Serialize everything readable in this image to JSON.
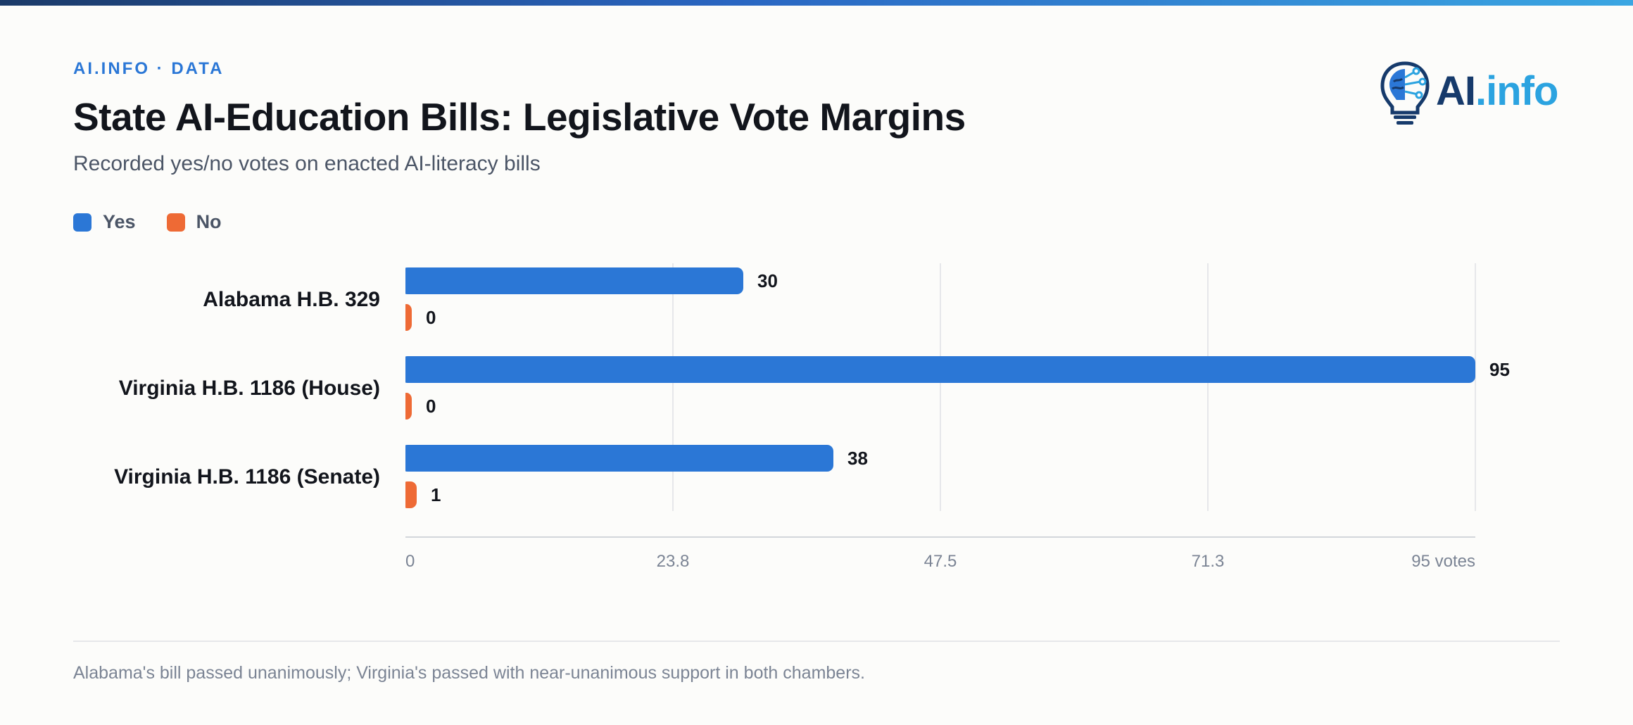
{
  "header": {
    "eyebrow": "AI.INFO · DATA",
    "title": "State AI-Education Bills: Legislative Vote Margins",
    "subtitle": "Recorded yes/no votes on enacted AI-literacy bills"
  },
  "logo": {
    "ai": "AI",
    "info": ".info",
    "icon": "lightbulb-brain-icon"
  },
  "colors": {
    "yes": "#2b77d6",
    "no": "#ee6a35",
    "grid": "#e6e7ea",
    "axis": "#d3d6db"
  },
  "chart_data": {
    "type": "bar",
    "orientation": "horizontal",
    "categories": [
      "Alabama H.B. 329",
      "Virginia H.B. 1186 (House)",
      "Virginia H.B. 1186 (Senate)"
    ],
    "series": [
      {
        "name": "Yes",
        "values": [
          30,
          95,
          38
        ]
      },
      {
        "name": "No",
        "values": [
          0,
          0,
          1
        ]
      }
    ],
    "xlim": [
      0,
      95
    ],
    "ticks": [
      "0",
      "23.8",
      "47.5",
      "71.3",
      "95 votes"
    ],
    "tick_values": [
      0,
      23.75,
      47.5,
      71.25,
      95
    ],
    "grid": true,
    "legend": "top-left"
  },
  "footnote": "Alabama's bill passed unanimously; Virginia's passed with near-unanimous support in both chambers."
}
